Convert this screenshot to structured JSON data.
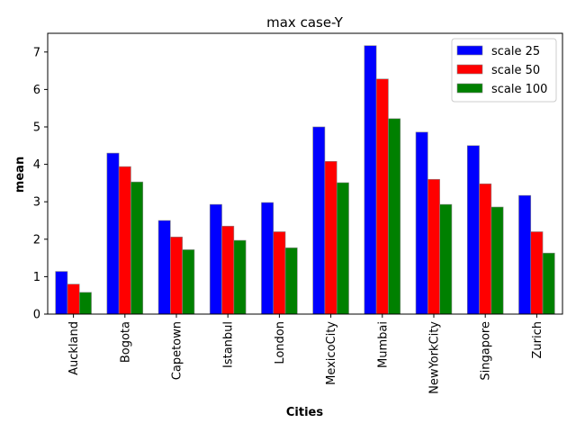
{
  "chart_data": {
    "type": "bar",
    "title": "max case-Y",
    "xlabel": "Cities",
    "ylabel": "mean",
    "categories": [
      "Auckland",
      "Bogota",
      "Capetown",
      "Istanbul",
      "London",
      "MexicoCity",
      "Mumbai",
      "NewYorkCity",
      "Singapore",
      "Zurich"
    ],
    "series": [
      {
        "name": "scale 25",
        "color": "#0000ff",
        "values": [
          1.14,
          4.3,
          2.5,
          2.93,
          2.98,
          5.0,
          7.17,
          4.86,
          4.5,
          3.17
        ]
      },
      {
        "name": "scale 50",
        "color": "#ff0000",
        "values": [
          0.8,
          3.94,
          2.06,
          2.35,
          2.2,
          4.08,
          6.28,
          3.6,
          3.48,
          2.2
        ]
      },
      {
        "name": "scale 100",
        "color": "#008000",
        "values": [
          0.58,
          3.53,
          1.72,
          1.97,
          1.77,
          3.51,
          5.22,
          2.93,
          2.86,
          1.63
        ]
      }
    ],
    "ylim": [
      0,
      7.5
    ],
    "yticks": [
      0,
      1,
      2,
      3,
      4,
      5,
      6,
      7
    ],
    "legend": "top-right",
    "grid": false
  }
}
